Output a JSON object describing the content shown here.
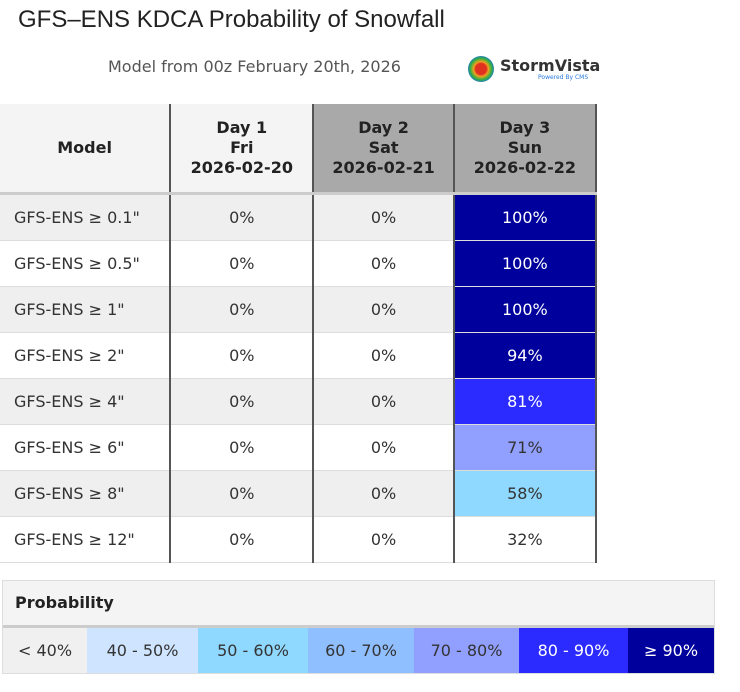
{
  "title": "GFS–ENS KDCA Probability of Snowfall",
  "subtitle": "Model from 00z February 20th, 2026",
  "logo": {
    "name": "StormVista",
    "powered": "Powered By CMS"
  },
  "chart_data": {
    "type": "table",
    "title": "GFS–ENS KDCA Probability of Snowfall",
    "columns": [
      {
        "day": "Model",
        "dow": "",
        "date": ""
      },
      {
        "day": "Day 1",
        "dow": "Fri",
        "date": "2026-02-20",
        "header_bg": "#f4f4f4"
      },
      {
        "day": "Day 2",
        "dow": "Sat",
        "date": "2026-02-21",
        "header_bg": "#a9a9a9"
      },
      {
        "day": "Day 3",
        "dow": "Sun",
        "date": "2026-02-22",
        "header_bg": "#a9a9a9"
      }
    ],
    "rows": [
      {
        "label": "GFS-ENS ≥ 0.1\"",
        "values": [
          0,
          0,
          100
        ]
      },
      {
        "label": "GFS-ENS ≥ 0.5\"",
        "values": [
          0,
          0,
          100
        ]
      },
      {
        "label": "GFS-ENS ≥ 1\"",
        "values": [
          0,
          0,
          100
        ]
      },
      {
        "label": "GFS-ENS ≥ 2\"",
        "values": [
          0,
          0,
          94
        ]
      },
      {
        "label": "GFS-ENS ≥ 4\"",
        "values": [
          0,
          0,
          81
        ]
      },
      {
        "label": "GFS-ENS ≥ 6\"",
        "values": [
          0,
          0,
          71
        ]
      },
      {
        "label": "GFS-ENS ≥ 8\"",
        "values": [
          0,
          0,
          58
        ]
      },
      {
        "label": "GFS-ENS ≥ 12\"",
        "values": [
          0,
          0,
          32
        ]
      }
    ],
    "legend": {
      "title": "Probability",
      "bins": [
        {
          "label": "< 40%",
          "min": 0,
          "color": "#f0f0f0",
          "text": "#333"
        },
        {
          "label": "40 - 50%",
          "min": 40,
          "color": "#cfe5ff",
          "text": "#333"
        },
        {
          "label": "50 - 60%",
          "min": 50,
          "color": "#8fd8ff",
          "text": "#333"
        },
        {
          "label": "60 - 70%",
          "min": 60,
          "color": "#8fbfff",
          "text": "#333"
        },
        {
          "label": "70 - 80%",
          "min": 70,
          "color": "#919fff",
          "text": "#333"
        },
        {
          "label": "80 - 90%",
          "min": 80,
          "color": "#2b2bff",
          "text": "#fff"
        },
        {
          "label": "≥ 90%",
          "min": 90,
          "color": "#00009c",
          "text": "#fff"
        }
      ]
    }
  }
}
